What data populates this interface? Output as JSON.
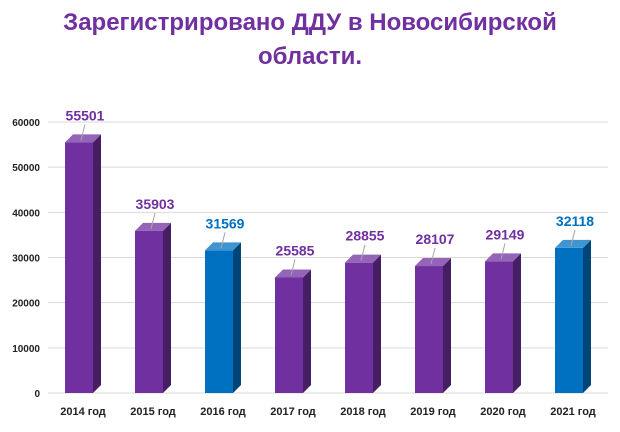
{
  "chart_data": {
    "type": "bar",
    "title_lines": [
      "Зарегистрировано ДДУ  в Новосибирской",
      "области."
    ],
    "categories": [
      "2014 год",
      "2015 год",
      "2016 год",
      "2017 год",
      "2018 год",
      "2019 год",
      "2020 год",
      "2021 год"
    ],
    "values": [
      55501,
      35903,
      31569,
      25585,
      28855,
      28107,
      29149,
      32118
    ],
    "value_labels": [
      "55501",
      "35903",
      "31569",
      "25585",
      "28855",
      "28107",
      "29149",
      "32118"
    ],
    "bar_colors": [
      "#7030a0",
      "#7030a0",
      "#0070c0",
      "#7030a0",
      "#7030a0",
      "#7030a0",
      "#7030a0",
      "#0070c0"
    ],
    "label_colors": [
      "#7030a0",
      "#7030a0",
      "#0070c0",
      "#7030a0",
      "#7030a0",
      "#7030a0",
      "#7030a0",
      "#0070c0"
    ],
    "y_ticks": [
      "0",
      "10000",
      "20000",
      "30000",
      "40000",
      "50000",
      "60000"
    ],
    "ylim": [
      0,
      60000
    ],
    "grid": true,
    "bar_style": "3d"
  }
}
